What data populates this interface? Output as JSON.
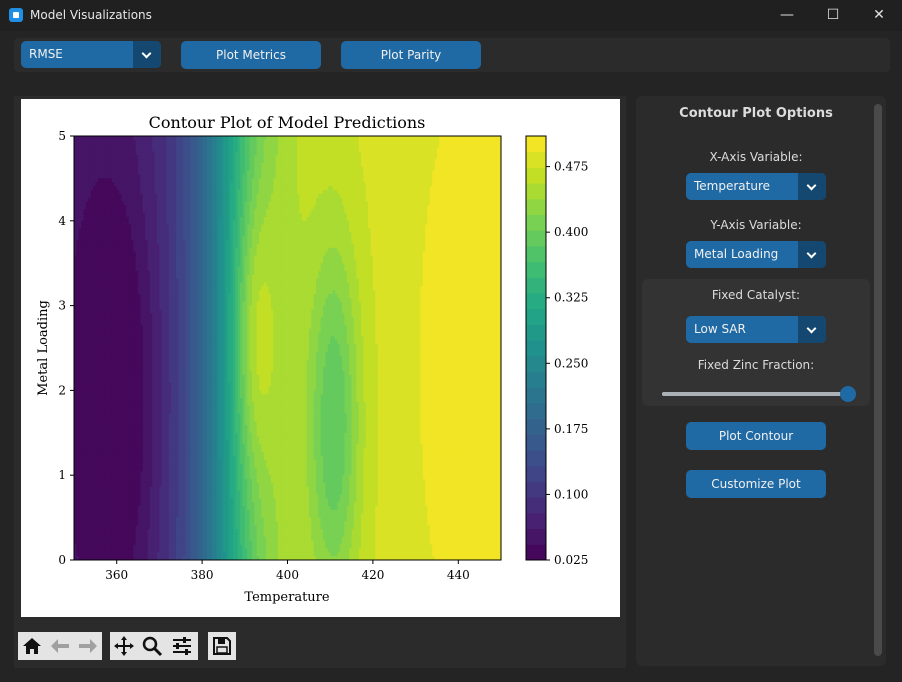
{
  "window": {
    "title": "Model Visualizations",
    "minimize": "—",
    "maximize": "☐",
    "close": "✕"
  },
  "topbar": {
    "metric_value": "RMSE",
    "plot_metrics": "Plot Metrics",
    "plot_parity": "Plot Parity"
  },
  "chart_data": {
    "type": "contour",
    "title": "Contour Plot of Model Predictions",
    "xlabel": "Temperature",
    "ylabel": "Metal Loading",
    "xlim": [
      350,
      450
    ],
    "ylim": [
      0,
      5
    ],
    "x_ticks": [
      "360",
      "380",
      "400",
      "420",
      "440"
    ],
    "y_ticks": [
      "0",
      "1",
      "2",
      "3",
      "4",
      "5"
    ],
    "colorbar_ticks": [
      "0.025",
      "0.100",
      "0.175",
      "0.250",
      "0.325",
      "0.400",
      "0.475"
    ],
    "colorbar_range": [
      0.025,
      0.51
    ],
    "colormap": "viridis",
    "levels": 27
  },
  "toolbar": {
    "home": "home-icon",
    "back": "back-arrow-icon",
    "forward": "forward-arrow-icon",
    "pan": "pan-icon",
    "zoom": "zoom-icon",
    "configure": "configure-icon",
    "save": "save-icon"
  },
  "side": {
    "title": "Contour Plot Options",
    "x_axis_label": "X-Axis Variable:",
    "x_axis_value": "Temperature",
    "y_axis_label": "Y-Axis Variable:",
    "y_axis_value": "Metal Loading",
    "catalyst_label": "Fixed Catalyst:",
    "catalyst_value": "Low SAR",
    "zinc_label": "Fixed Zinc Fraction:",
    "zinc_fraction": 1.0,
    "plot_contour": "Plot Contour",
    "customize": "Customize Plot"
  },
  "colors": {
    "accent": "#1f6aa5",
    "accent_dark": "#144870",
    "bg": "#242424",
    "panel": "#2b2b2b"
  }
}
